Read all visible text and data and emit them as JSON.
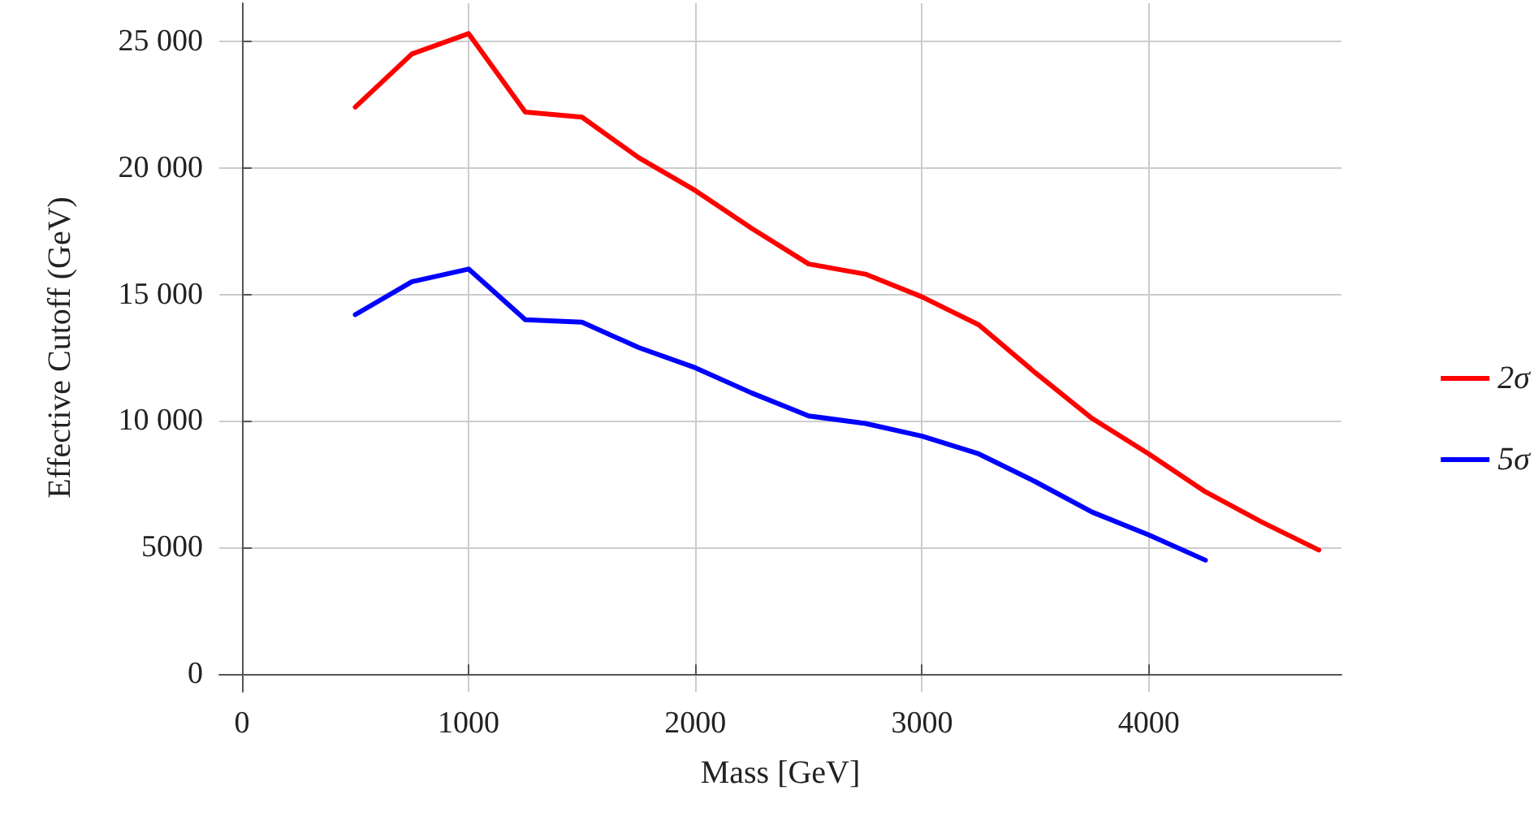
{
  "chart_data": {
    "type": "line",
    "xlabel": "Mass [GeV]",
    "ylabel": "Effective Cutoff (GeV)",
    "x": [
      500,
      750,
      1000,
      1250,
      1500,
      1750,
      2000,
      2250,
      2500,
      2750,
      3000,
      3250,
      3500,
      3750,
      4000,
      4250,
      4500,
      4750
    ],
    "series": [
      {
        "name": "2σ",
        "color": "#ff0000",
        "values": [
          22400,
          24500,
          25300,
          22200,
          22000,
          20400,
          19100,
          17600,
          16200,
          15800,
          14900,
          13800,
          11900,
          10100,
          8700,
          7200,
          6000,
          4900
        ]
      },
      {
        "name": "5σ",
        "color": "#0000ff",
        "values": [
          14200,
          15500,
          16000,
          14000,
          13900,
          12900,
          12100,
          11100,
          10200,
          9900,
          9400,
          8700,
          7600,
          6400,
          5500,
          4500,
          null,
          null
        ]
      }
    ],
    "xlim": [
      -100,
      4850
    ],
    "ylim": [
      -700,
      26500
    ],
    "xticks": [
      0,
      1000,
      2000,
      3000,
      4000
    ],
    "yticks": [
      0,
      {
        "value": 5000,
        "label": "5000"
      },
      {
        "value": 10000,
        "label": "10 000"
      },
      {
        "value": 15000,
        "label": "15 000"
      },
      {
        "value": 20000,
        "label": "20 000"
      },
      {
        "value": 25000,
        "label": "25 000"
      }
    ],
    "grid": true,
    "legend": "right",
    "marker": "none",
    "line_style": "solid"
  }
}
